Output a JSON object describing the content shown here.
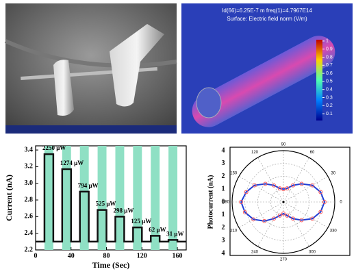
{
  "chart_data": [
    {
      "type": "line",
      "x_label": "Time (Sec)",
      "y_label": "Current (nA)",
      "xlim": [
        0,
        170
      ],
      "xticks": [
        0,
        40,
        80,
        120,
        160
      ],
      "ylim": [
        2.2,
        3.45
      ],
      "yticks": [
        2.2,
        2.4,
        2.6,
        2.8,
        {
          "value": 3,
          "label": "3.0"
        },
        3.2,
        3.4
      ],
      "x": [
        0,
        10,
        10,
        20,
        20,
        30,
        30,
        40,
        40,
        50,
        50,
        60,
        60,
        70,
        70,
        80,
        80,
        90,
        90,
        100,
        100,
        110,
        110,
        120,
        120,
        130,
        130,
        140,
        140,
        150,
        150,
        160,
        160,
        170
      ],
      "values": [
        2.3,
        2.3,
        3.35,
        3.35,
        2.3,
        2.3,
        3.17,
        3.17,
        2.3,
        2.3,
        2.9,
        2.9,
        2.3,
        2.3,
        2.68,
        2.68,
        2.3,
        2.3,
        2.6,
        2.6,
        2.3,
        2.3,
        2.47,
        2.47,
        2.3,
        2.3,
        2.37,
        2.37,
        2.3,
        2.3,
        2.32,
        2.32,
        2.3,
        2.3
      ],
      "color": "#111111",
      "on_intervals": [
        [
          10,
          20
        ],
        [
          30,
          40
        ],
        [
          50,
          60
        ],
        [
          70,
          80
        ],
        [
          90,
          100
        ],
        [
          110,
          120
        ],
        [
          130,
          140
        ],
        [
          150,
          160
        ]
      ],
      "interval_color": "#8fe0c4",
      "annotations": [
        "2250 μW",
        "1274 μW",
        "794 μW",
        "525 μW",
        "298 μW",
        "125 μW",
        "62 μW",
        "31 μW"
      ]
    },
    {
      "type": "polar",
      "r_label": "Photocurrent (nA)",
      "theta": [
        0,
        15,
        30,
        45,
        60,
        75,
        90,
        105,
        120,
        135,
        150,
        165,
        180,
        195,
        210,
        225,
        240,
        255,
        270,
        285,
        300,
        315,
        330,
        345
      ],
      "values": [
        3.2,
        3.0,
        2.6,
        2.0,
        1.5,
        1.1,
        1.0,
        1.1,
        1.5,
        2.0,
        2.6,
        3.0,
        3.3,
        3.1,
        2.7,
        2.1,
        1.5,
        1.1,
        0.9,
        1.1,
        1.5,
        2.0,
        2.6,
        3.0
      ],
      "color": "#1f3fd6",
      "marker_color": "#ff5a5a",
      "rlim": [
        0,
        4
      ],
      "rticks": [
        0,
        1,
        2,
        3,
        4
      ],
      "thetaticks": [
        0,
        30,
        60,
        90,
        120,
        150,
        180,
        210,
        240,
        270,
        300,
        330
      ]
    }
  ],
  "simulation": {
    "title": "Id(66)=6.25E-7 m freq(1)=4.7967E14",
    "subtitle": "Surface: Electric field norm (V/m)",
    "colorbar_ticks": [
      1,
      0.9,
      0.8,
      0.7,
      0.6,
      0.5,
      0.4,
      0.3,
      0.2,
      0.1
    ]
  }
}
